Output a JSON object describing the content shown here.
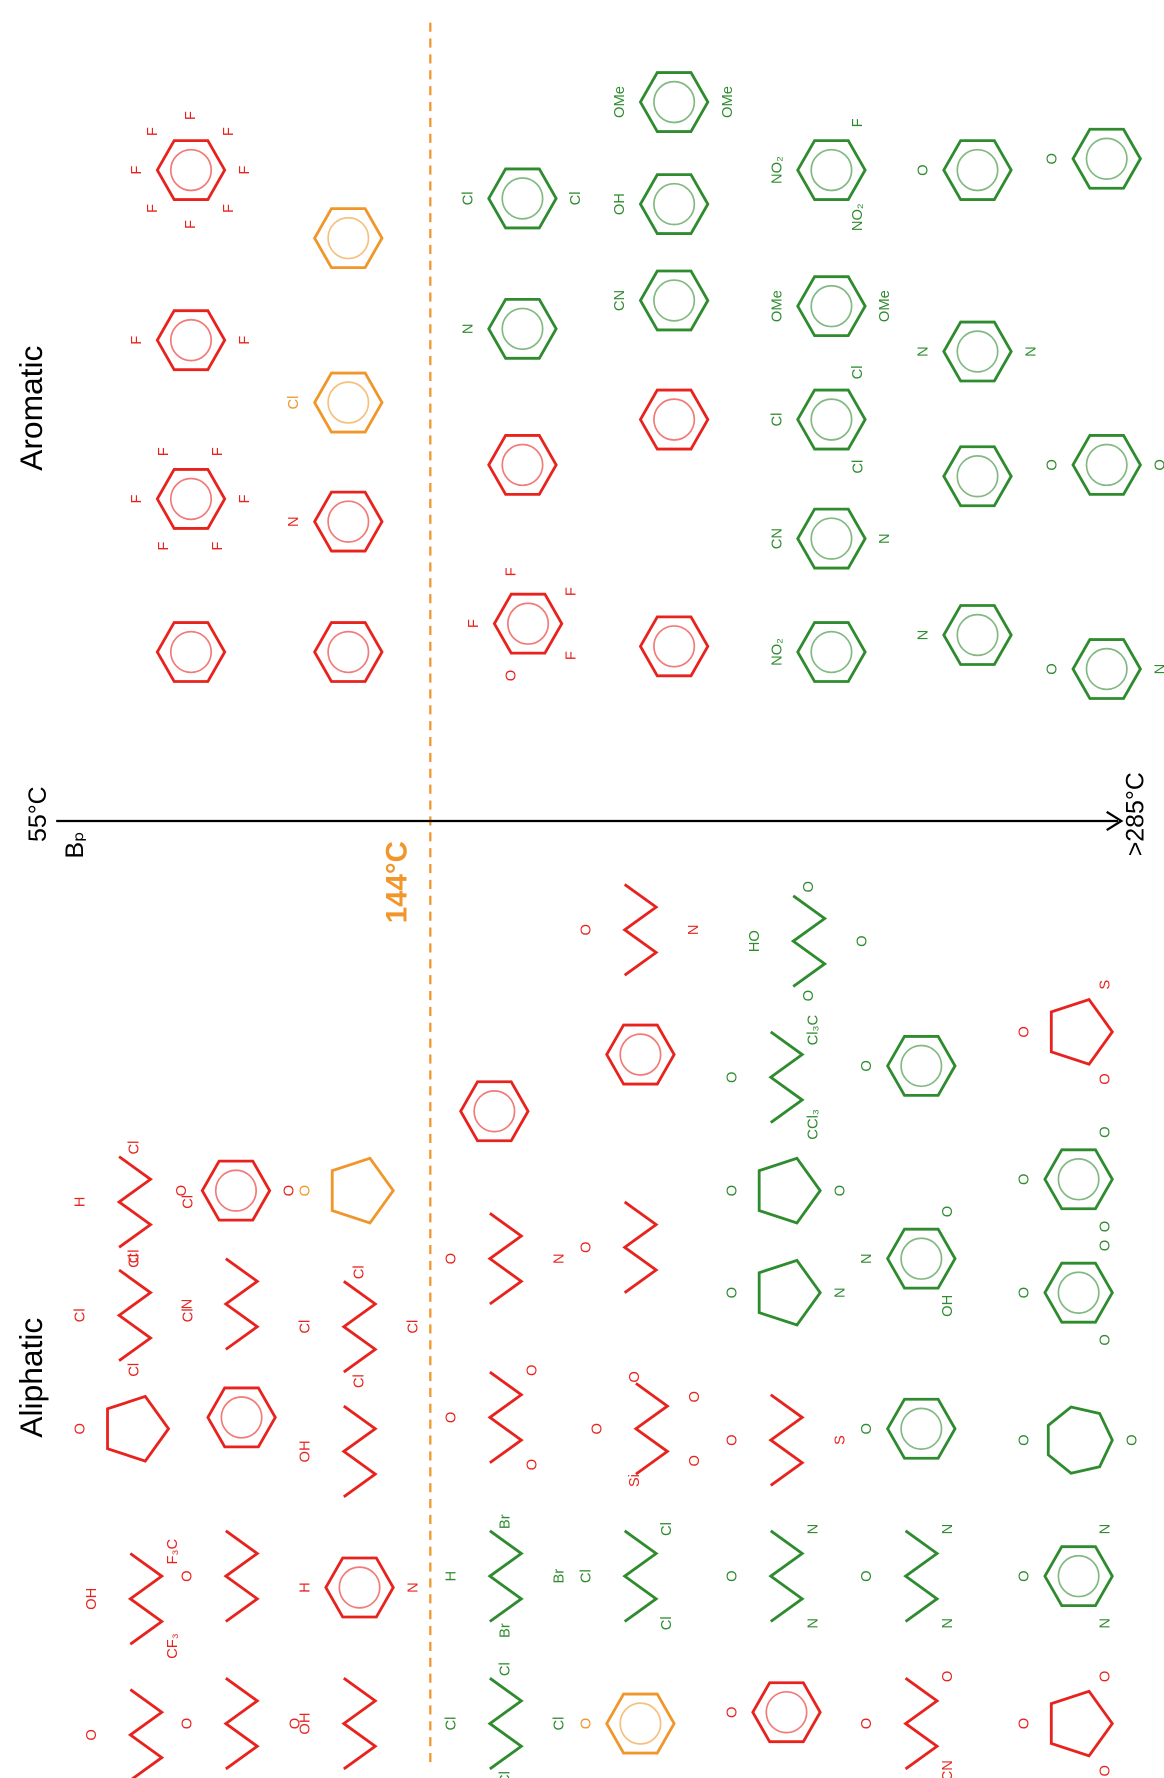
{
  "headings": {
    "aromatic": "Aromatic",
    "aliphatic": "Aliphatic"
  },
  "axis": {
    "start": "55°C",
    "name": "Bₚ",
    "end": ">285°C",
    "threshold": "144°C"
  },
  "colors": {
    "low": "#e8231e",
    "mid": "#f0962a",
    "high": "#2e8b2e"
  },
  "molecules": [
    {
      "color": "low",
      "ring": 6,
      "labels": []
    },
    {
      "color": "low",
      "ring": 6,
      "labels": [
        "F",
        "F",
        "F",
        "F",
        "F",
        "F"
      ]
    },
    {
      "color": "low",
      "ring": 6,
      "labels": [
        "F",
        "F"
      ]
    },
    {
      "color": "low",
      "ring": 6,
      "labels": [
        "F",
        "F",
        "F",
        "F",
        "F",
        "F",
        "F",
        "F"
      ]
    },
    {
      "color": "low",
      "ring": 6,
      "labels": []
    },
    {
      "color": "low",
      "ring": 6,
      "labels": [
        "N"
      ]
    },
    {
      "color": "mid",
      "ring": 6,
      "labels": [
        "Cl"
      ]
    },
    {
      "color": "mid",
      "ring": 6,
      "labels": []
    },
    {
      "color": "low",
      "ring": 6,
      "labels": [
        "F",
        "F",
        "F",
        "F",
        "O"
      ]
    },
    {
      "color": "low",
      "ring": 6,
      "labels": []
    },
    {
      "color": "high",
      "ring": 6,
      "labels": [
        "N"
      ]
    },
    {
      "color": "high",
      "ring": 6,
      "labels": [
        "Cl",
        "Cl"
      ]
    },
    {
      "color": "low",
      "ring": 6,
      "labels": []
    },
    {
      "color": "low",
      "ring": 6,
      "labels": []
    },
    {
      "color": "high",
      "ring": 6,
      "labels": [
        "CN"
      ]
    },
    {
      "color": "high",
      "ring": 6,
      "labels": [
        "OH"
      ]
    },
    {
      "color": "high",
      "ring": 6,
      "labels": [
        "OMe",
        "OMe"
      ]
    },
    {
      "color": "high",
      "ring": 6,
      "labels": [
        "NO₂"
      ]
    },
    {
      "color": "high",
      "ring": 6,
      "labels": [
        "CN",
        "N"
      ]
    },
    {
      "color": "high",
      "ring": 6,
      "labels": [
        "Cl",
        "Cl",
        "Cl"
      ]
    },
    {
      "color": "high",
      "ring": 6,
      "labels": [
        "OMe",
        "OMe"
      ]
    },
    {
      "color": "high",
      "ring": 6,
      "labels": [
        "NO₂",
        "F",
        "NO₂"
      ]
    },
    {
      "color": "high",
      "ring": 6,
      "labels": [
        "N"
      ]
    },
    {
      "color": "high",
      "ring": 6,
      "labels": []
    },
    {
      "color": "high",
      "ring": 6,
      "labels": [
        "N",
        "N"
      ]
    },
    {
      "color": "high",
      "ring": 6,
      "labels": [
        "O"
      ]
    },
    {
      "color": "high",
      "ring": 6,
      "labels": [
        "O",
        "N"
      ]
    },
    {
      "color": "high",
      "ring": 6,
      "labels": [
        "O",
        "O"
      ]
    },
    {
      "color": "high",
      "ring": 6,
      "labels": [
        "O"
      ]
    },
    {
      "color": "low",
      "ring": 0,
      "labels": [
        "O"
      ]
    },
    {
      "color": "low",
      "ring": 0,
      "labels": [
        "OH",
        "F₃C",
        "CF₃"
      ]
    },
    {
      "color": "low",
      "ring": 5,
      "labels": [
        "O"
      ]
    },
    {
      "color": "low",
      "ring": 0,
      "labels": [
        "Cl",
        "Cl",
        "Cl",
        "Cl"
      ]
    },
    {
      "color": "low",
      "ring": 0,
      "labels": [
        "H",
        "Cl",
        "Cl",
        "Cl"
      ]
    },
    {
      "color": "low",
      "ring": 0,
      "labels": [
        "O",
        "O"
      ]
    },
    {
      "color": "low",
      "ring": 0,
      "labels": [
        "O"
      ]
    },
    {
      "color": "low",
      "ring": 6,
      "labels": []
    },
    {
      "color": "low",
      "ring": 0,
      "labels": [
        "N"
      ]
    },
    {
      "color": "low",
      "ring": 6,
      "labels": [
        "O",
        "O"
      ]
    },
    {
      "color": "low",
      "ring": 0,
      "labels": [
        "OH"
      ]
    },
    {
      "color": "low",
      "ring": 6,
      "labels": [
        "H",
        "N"
      ]
    },
    {
      "color": "low",
      "ring": 0,
      "labels": [
        "OH"
      ]
    },
    {
      "color": "low",
      "ring": 0,
      "labels": [
        "Cl",
        "Cl",
        "Cl",
        "Cl"
      ]
    },
    {
      "color": "mid",
      "ring": 5,
      "labels": [
        "O"
      ]
    },
    {
      "color": "high",
      "ring": 0,
      "labels": [
        "Cl",
        "Cl",
        "Cl",
        "Cl"
      ]
    },
    {
      "color": "high",
      "ring": 0,
      "labels": [
        "H",
        "Br",
        "Br",
        "Br"
      ]
    },
    {
      "color": "low",
      "ring": 0,
      "labels": [
        "O",
        "O",
        "O"
      ]
    },
    {
      "color": "low",
      "ring": 0,
      "labels": [
        "O",
        "N"
      ]
    },
    {
      "color": "low",
      "ring": 6,
      "labels": []
    },
    {
      "color": "mid",
      "ring": 6,
      "labels": [
        "O"
      ]
    },
    {
      "color": "high",
      "ring": 0,
      "labels": [
        "Cl",
        "Cl",
        "Cl"
      ]
    },
    {
      "color": "low",
      "ring": 0,
      "labels": [
        "O",
        "O",
        "O",
        "O",
        "Si"
      ]
    },
    {
      "color": "low",
      "ring": 0,
      "labels": [
        "O"
      ]
    },
    {
      "color": "low",
      "ring": 6,
      "labels": []
    },
    {
      "color": "low",
      "ring": 0,
      "labels": [
        "O",
        "N"
      ]
    },
    {
      "color": "low",
      "ring": 6,
      "labels": [
        "O"
      ]
    },
    {
      "color": "high",
      "ring": 0,
      "labels": [
        "O",
        "N",
        "N"
      ]
    },
    {
      "color": "low",
      "ring": 0,
      "labels": [
        "O",
        "S"
      ]
    },
    {
      "color": "high",
      "ring": 5,
      "labels": [
        "O",
        "N"
      ]
    },
    {
      "color": "high",
      "ring": 5,
      "labels": [
        "O",
        "O"
      ]
    },
    {
      "color": "high",
      "ring": 0,
      "labels": [
        "O",
        "Cl₃C",
        "CCl₃"
      ]
    },
    {
      "color": "high",
      "ring": 0,
      "labels": [
        "HO",
        "O",
        "O",
        "O"
      ]
    },
    {
      "color": "low",
      "ring": 0,
      "labels": [
        "O",
        "O",
        "CN"
      ]
    },
    {
      "color": "high",
      "ring": 0,
      "labels": [
        "O",
        "N",
        "N"
      ]
    },
    {
      "color": "high",
      "ring": 6,
      "labels": [
        "O"
      ]
    },
    {
      "color": "high",
      "ring": 6,
      "labels": [
        "N",
        "O",
        "OH"
      ]
    },
    {
      "color": "high",
      "ring": 6,
      "labels": [
        "O"
      ]
    },
    {
      "color": "low",
      "ring": 5,
      "labels": [
        "O",
        "O",
        "O"
      ]
    },
    {
      "color": "high",
      "ring": 6,
      "labels": [
        "O",
        "N",
        "N"
      ]
    },
    {
      "color": "high",
      "ring": 7,
      "labels": [
        "O",
        "O"
      ]
    },
    {
      "color": "high",
      "ring": 6,
      "labels": [
        "O",
        "O",
        "O"
      ]
    },
    {
      "color": "high",
      "ring": 6,
      "labels": [
        "O",
        "O",
        "O"
      ]
    },
    {
      "color": "low",
      "ring": 5,
      "labels": [
        "O",
        "S",
        "O"
      ]
    }
  ]
}
